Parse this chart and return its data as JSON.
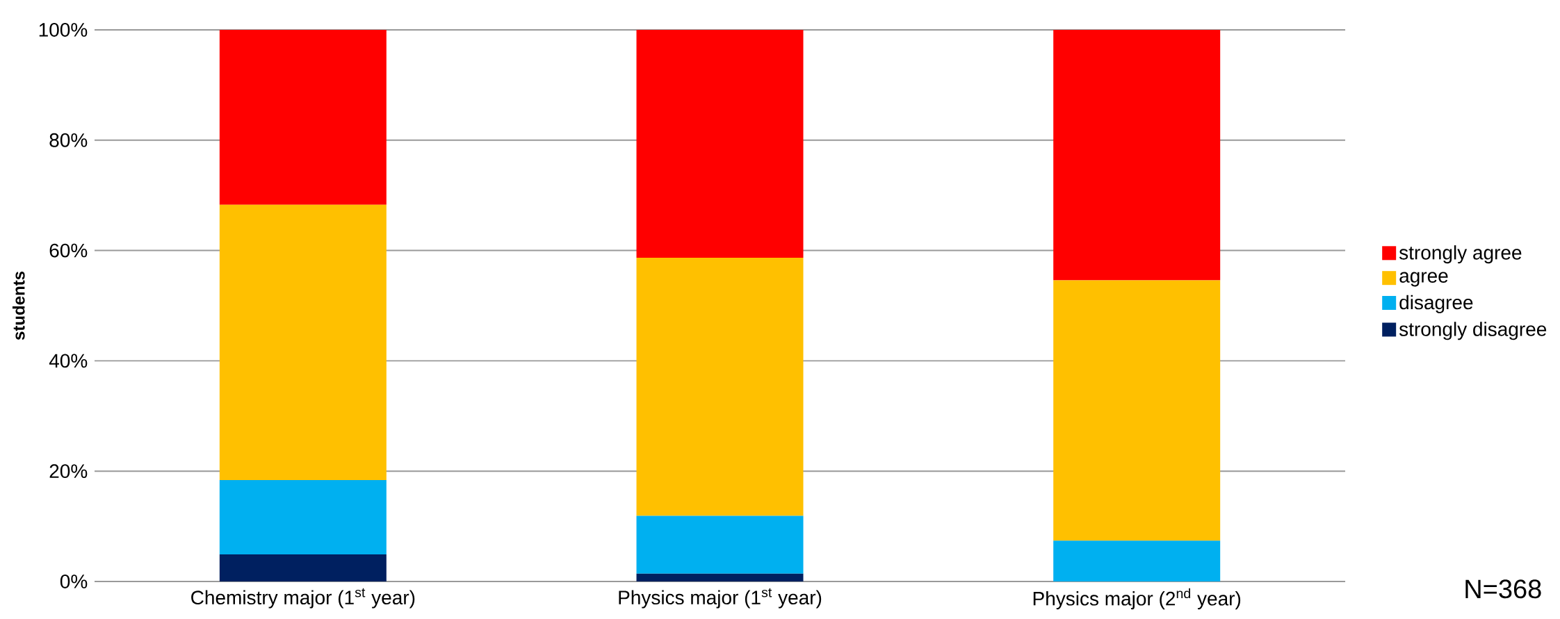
{
  "chart_data": {
    "type": "bar",
    "stacked": true,
    "ylabel": "students",
    "categories": [
      "Chemistry major (1$^{st}$ year)",
      "Physics major (1$^{st}$ year)",
      "Physics major (2$^{nd}$ year)"
    ],
    "series": [
      {
        "name": "strongly disagree",
        "color": "#002060",
        "values": [
          4.9,
          1.4,
          0
        ]
      },
      {
        "name": "disagree",
        "color": "#00b0f0",
        "values": [
          13.5,
          10.5,
          7.4
        ]
      },
      {
        "name": "agree",
        "color": "#ffc000",
        "values": [
          49.9,
          46.8,
          47.2
        ]
      },
      {
        "name": "strongly agree",
        "color": "#ff0000",
        "values": [
          31.7,
          41.3,
          45.4
        ]
      }
    ],
    "ylim": [
      0,
      100
    ],
    "yticks": [
      {
        "value": 0,
        "label": "0%"
      },
      {
        "value": 20,
        "label": "20%"
      },
      {
        "value": 40,
        "label": "40%"
      },
      {
        "value": 60,
        "label": "60%"
      },
      {
        "value": 80,
        "label": "80%"
      },
      {
        "value": 100,
        "label": "100%"
      }
    ],
    "grid": "y",
    "legend": "right",
    "annotations": [
      "N=368"
    ]
  }
}
